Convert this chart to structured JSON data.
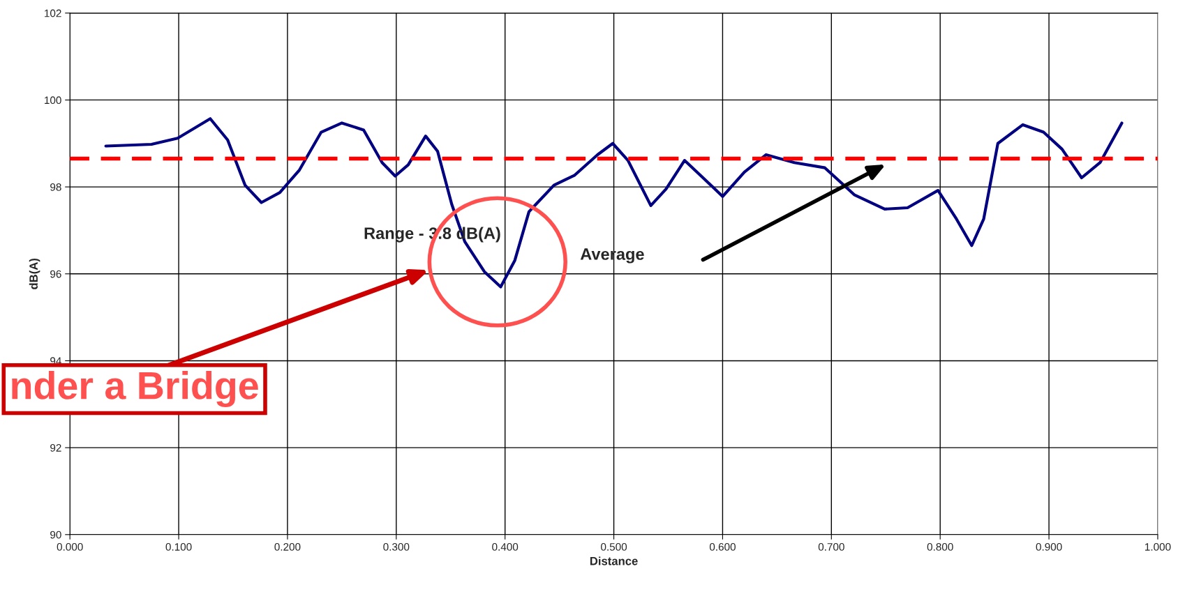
{
  "chart_data": {
    "type": "line",
    "xlabel": "Distance",
    "ylabel": "dB(A)",
    "x": [
      0.033,
      0.075,
      0.099,
      0.129,
      0.145,
      0.161,
      0.176,
      0.193,
      0.211,
      0.231,
      0.25,
      0.27,
      0.287,
      0.299,
      0.311,
      0.327,
      0.338,
      0.351,
      0.363,
      0.381,
      0.396,
      0.409,
      0.422,
      0.445,
      0.464,
      0.485,
      0.499,
      0.513,
      0.534,
      0.548,
      0.565,
      0.582,
      0.6,
      0.62,
      0.64,
      0.666,
      0.694,
      0.721,
      0.749,
      0.77,
      0.798,
      0.815,
      0.829,
      0.84,
      0.853,
      0.876,
      0.895,
      0.912,
      0.93,
      0.947,
      0.967
    ],
    "series": [
      {
        "color": "#000080",
        "values": [
          98.94,
          98.98,
          99.12,
          99.57,
          99.08,
          98.04,
          97.64,
          97.87,
          98.39,
          99.26,
          99.47,
          99.31,
          98.56,
          98.25,
          98.51,
          99.17,
          98.82,
          97.6,
          96.74,
          96.05,
          95.7,
          96.31,
          97.43,
          98.04,
          98.27,
          98.74,
          99.0,
          98.61,
          97.57,
          97.95,
          98.61,
          98.21,
          97.78,
          98.34,
          98.74,
          98.56,
          98.44,
          97.82,
          97.49,
          97.52,
          97.92,
          97.26,
          96.65,
          97.26,
          99.0,
          99.43,
          99.26,
          98.87,
          98.21,
          98.56,
          99.47
        ]
      }
    ],
    "xlim": [
      0,
      1
    ],
    "ylim": [
      90,
      102
    ],
    "xticks": [
      {
        "value": 0,
        "label": "0.000"
      },
      {
        "value": 0.1,
        "label": "0.100"
      },
      {
        "value": 0.2,
        "label": "0.200"
      },
      {
        "value": 0.3,
        "label": "0.300"
      },
      {
        "value": 0.4,
        "label": "0.400"
      },
      {
        "value": 0.5,
        "label": "0.500"
      },
      {
        "value": 0.6,
        "label": "0.600"
      },
      {
        "value": 0.7,
        "label": "0.700"
      },
      {
        "value": 0.8,
        "label": "0.800"
      },
      {
        "value": 0.9,
        "label": "0.900"
      },
      {
        "value": 1,
        "label": "1.000"
      }
    ],
    "yticks": [
      90,
      92,
      94,
      96,
      98,
      100,
      102
    ],
    "grid": true,
    "marker": "none",
    "line_style": "solid",
    "ref_lines": [
      {
        "axis": "y",
        "value": 98.65,
        "color": "#ff0000",
        "line_style": "dashed"
      }
    ],
    "annotations": [
      "Average",
      "Range - 3.8 dB(A)",
      "nder a Bridge"
    ]
  }
}
